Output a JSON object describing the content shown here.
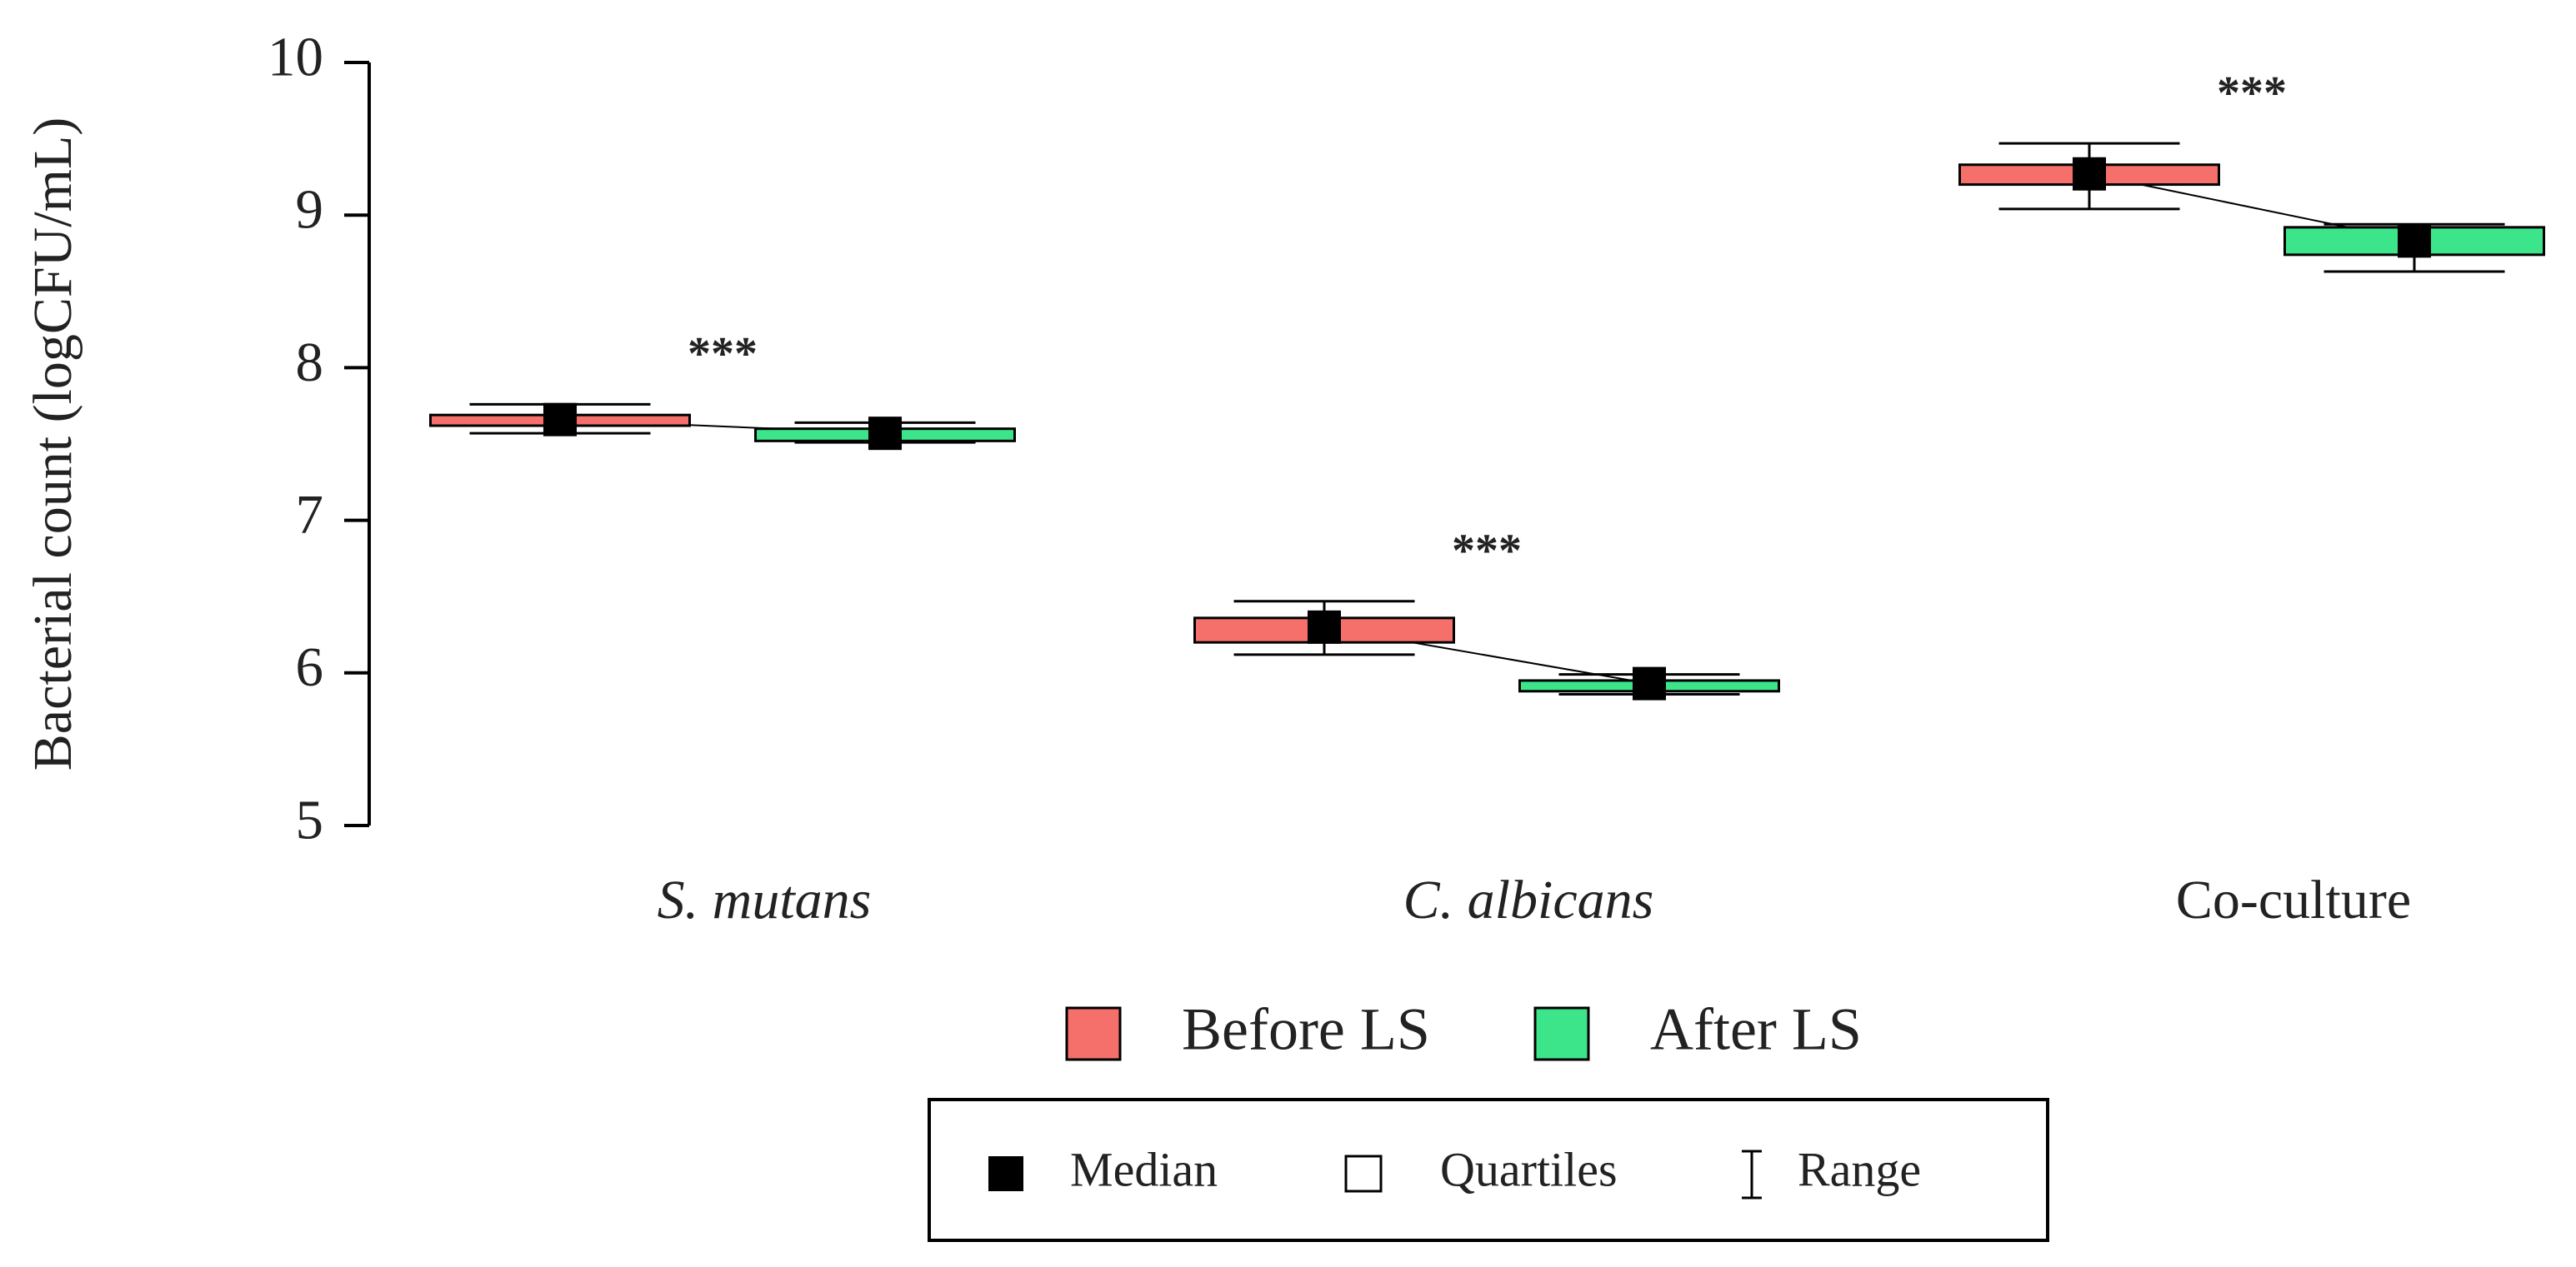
{
  "chart_data": {
    "type": "box",
    "y_label": "Bacterial count (logCFU/mL)",
    "categories": [
      "S. mutans",
      "C. albicans",
      "Co-culture"
    ],
    "italic_categories": [
      true,
      true,
      false
    ],
    "series": [
      {
        "name": "Before LS",
        "color": "#f5706b",
        "min": [
          7.57,
          6.12,
          9.04
        ],
        "q1": [
          7.62,
          6.2,
          9.2
        ],
        "median": [
          7.66,
          6.3,
          9.27
        ],
        "q3": [
          7.69,
          6.36,
          9.33
        ],
        "max": [
          7.76,
          6.47,
          9.47
        ]
      },
      {
        "name": "After LS",
        "color": "#3de58a",
        "min": [
          7.51,
          5.86,
          8.63
        ],
        "q1": [
          7.52,
          5.88,
          8.74
        ],
        "median": [
          7.57,
          5.93,
          8.83
        ],
        "q3": [
          7.6,
          5.95,
          8.92
        ],
        "max": [
          7.64,
          5.99,
          8.94
        ]
      }
    ],
    "annotations": [
      "***",
      "***",
      "***"
    ],
    "legend_symbols": [
      "Median",
      "Quartiles",
      "Range"
    ],
    "ylim": [
      5,
      10
    ],
    "yticks": [
      5,
      6,
      7,
      8,
      9,
      10
    ]
  }
}
